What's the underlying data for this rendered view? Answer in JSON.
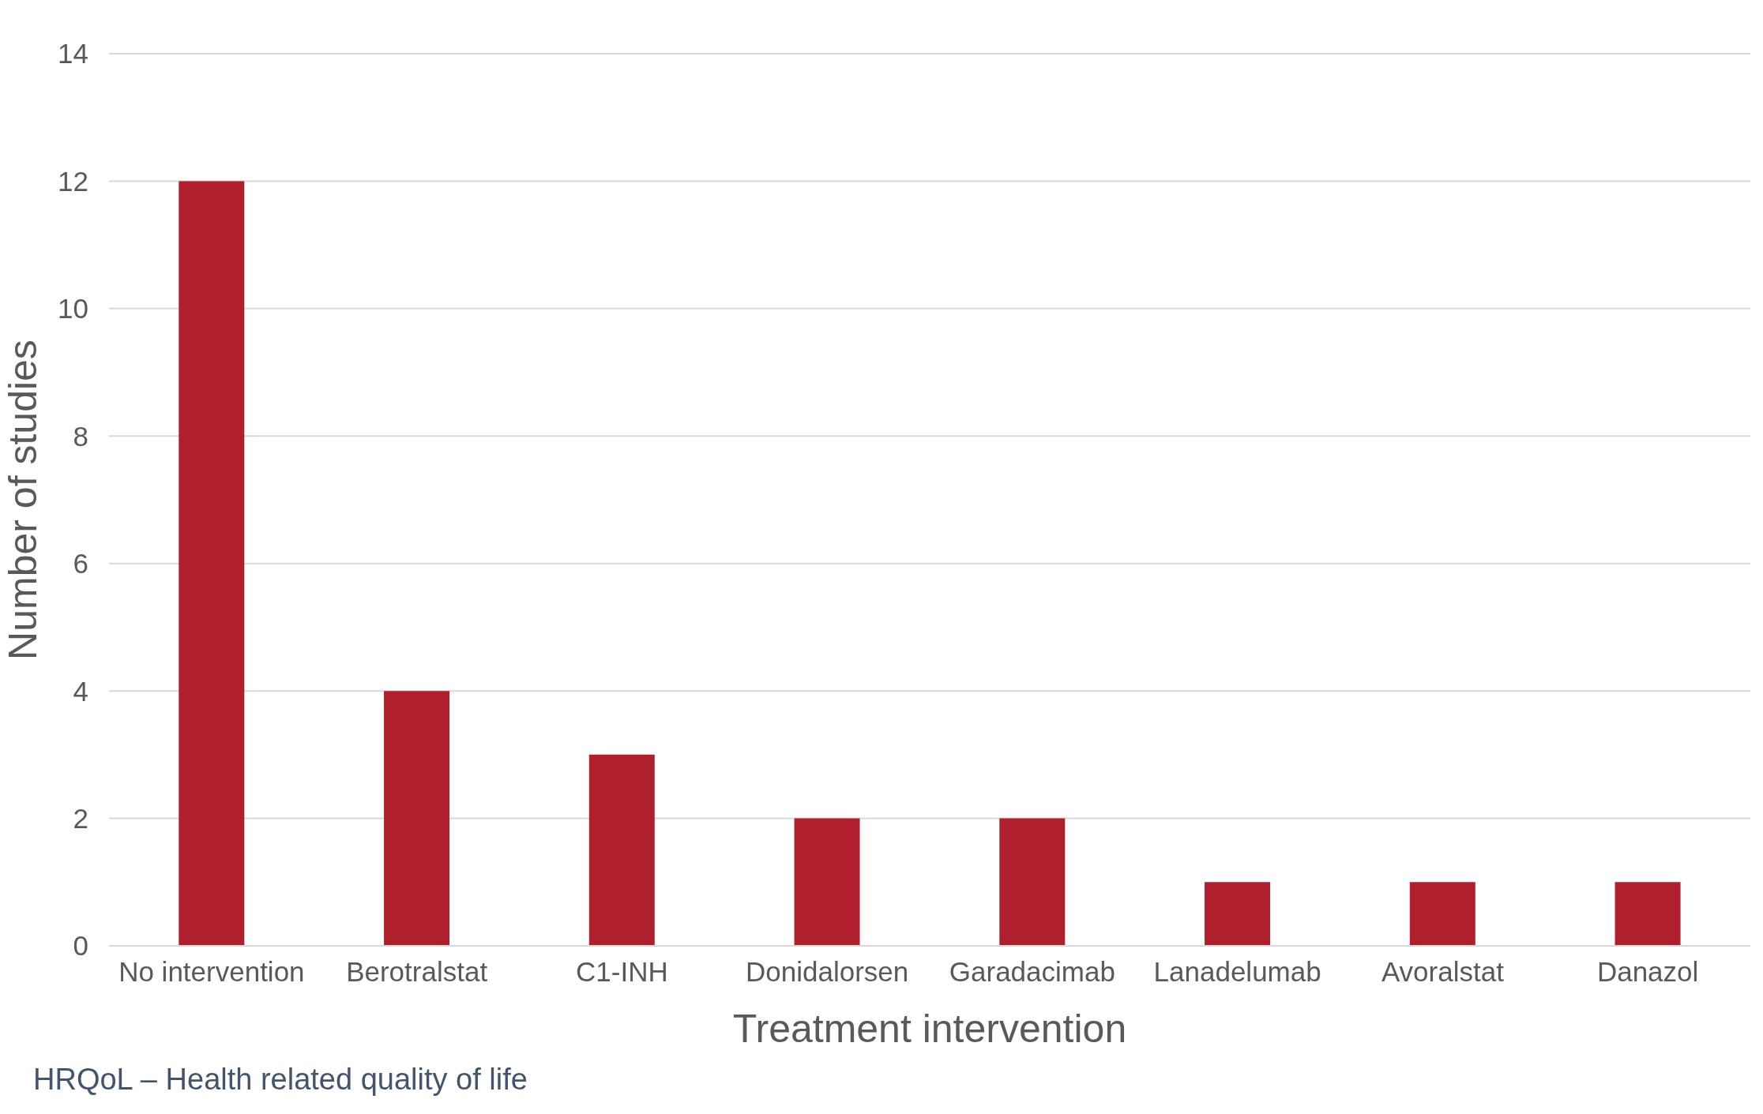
{
  "chart_data": {
    "type": "bar",
    "xlabel": "Treatment intervention",
    "ylabel": "Number of studies",
    "categories": [
      "No intervention",
      "Berotralstat",
      "C1-INH",
      "Donidalorsen",
      "Garadacimab",
      "Lanadelumab",
      "Avoralstat",
      "Danazol"
    ],
    "values": [
      12,
      4,
      3,
      2,
      2,
      1,
      1,
      1
    ],
    "color": "#b01f2e",
    "ylim": [
      0,
      14
    ],
    "yticks": [
      0,
      2,
      4,
      6,
      8,
      10,
      12,
      14
    ],
    "grid": "y",
    "annotations": [
      "HRQoL – Health related quality of life"
    ]
  }
}
